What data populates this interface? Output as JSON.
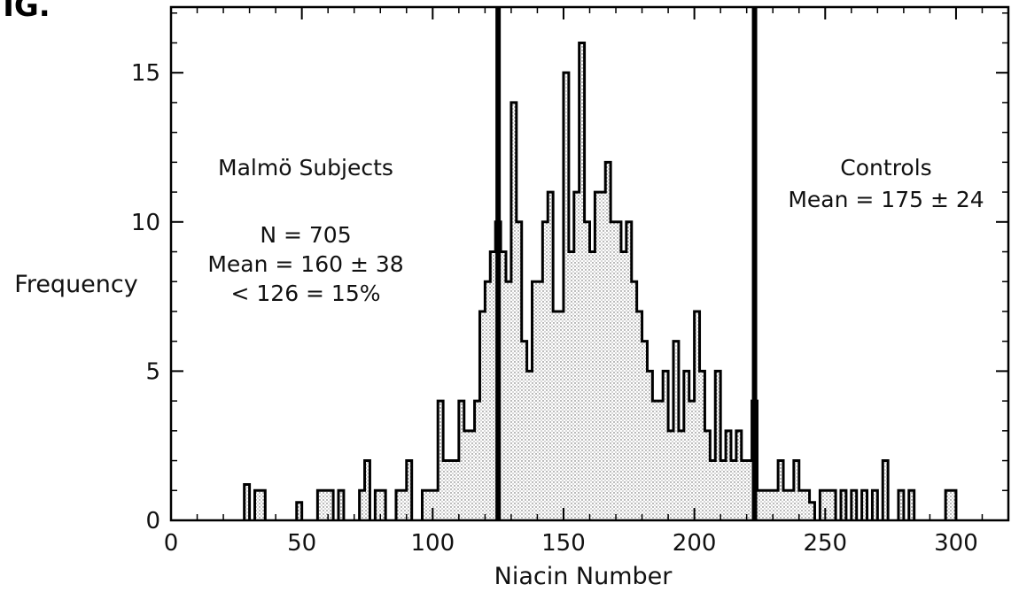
{
  "figure_label": "FIG.",
  "chart_data": {
    "type": "histogram",
    "xlabel": "Niacin Number",
    "ylabel": "Frequency",
    "xlim": [
      0,
      320
    ],
    "ylim": [
      0,
      17.2
    ],
    "x_ticks": [
      0,
      50,
      100,
      150,
      200,
      250,
      300
    ],
    "y_ticks": [
      0,
      5,
      10,
      15
    ],
    "grid": false,
    "bin_width": 2,
    "series": [
      {
        "bins": [
          [
            28,
            1.2
          ],
          [
            32,
            1
          ],
          [
            34,
            1
          ],
          [
            48,
            0.6
          ],
          [
            56,
            1
          ],
          [
            58,
            1
          ],
          [
            60,
            1
          ],
          [
            64,
            1
          ],
          [
            72,
            1
          ],
          [
            74,
            2
          ],
          [
            78,
            1
          ],
          [
            80,
            1
          ],
          [
            86,
            1
          ],
          [
            88,
            1
          ],
          [
            90,
            2
          ],
          [
            96,
            1
          ],
          [
            98,
            1
          ],
          [
            100,
            1
          ],
          [
            102,
            4
          ],
          [
            104,
            2
          ],
          [
            106,
            2
          ],
          [
            108,
            2
          ],
          [
            110,
            4
          ],
          [
            112,
            3
          ],
          [
            114,
            3
          ],
          [
            116,
            4
          ],
          [
            118,
            7
          ],
          [
            120,
            8
          ],
          [
            122,
            9
          ],
          [
            124,
            10
          ],
          [
            126,
            9
          ],
          [
            128,
            8
          ],
          [
            130,
            14
          ],
          [
            132,
            10
          ],
          [
            134,
            6
          ],
          [
            136,
            5
          ],
          [
            138,
            8
          ],
          [
            140,
            8
          ],
          [
            142,
            10
          ],
          [
            144,
            11
          ],
          [
            146,
            7
          ],
          [
            148,
            7
          ],
          [
            150,
            15
          ],
          [
            152,
            9
          ],
          [
            154,
            11
          ],
          [
            156,
            16
          ],
          [
            158,
            10
          ],
          [
            160,
            9
          ],
          [
            162,
            11
          ],
          [
            164,
            11
          ],
          [
            166,
            12
          ],
          [
            168,
            10
          ],
          [
            170,
            10
          ],
          [
            172,
            9
          ],
          [
            174,
            10
          ],
          [
            176,
            8
          ],
          [
            178,
            7
          ],
          [
            180,
            6
          ],
          [
            182,
            5
          ],
          [
            184,
            4
          ],
          [
            186,
            4
          ],
          [
            188,
            5
          ],
          [
            190,
            3
          ],
          [
            192,
            6
          ],
          [
            194,
            3
          ],
          [
            196,
            5
          ],
          [
            198,
            4
          ],
          [
            200,
            7
          ],
          [
            202,
            5
          ],
          [
            204,
            3
          ],
          [
            206,
            2
          ],
          [
            208,
            5
          ],
          [
            210,
            2
          ],
          [
            212,
            3
          ],
          [
            214,
            2
          ],
          [
            216,
            3
          ],
          [
            218,
            2
          ],
          [
            220,
            2
          ],
          [
            222,
            4
          ],
          [
            224,
            1
          ],
          [
            226,
            1
          ],
          [
            228,
            1
          ],
          [
            230,
            1
          ],
          [
            232,
            2
          ],
          [
            234,
            1
          ],
          [
            236,
            1
          ],
          [
            238,
            2
          ],
          [
            240,
            1
          ],
          [
            242,
            1
          ],
          [
            244,
            0.6
          ],
          [
            248,
            1
          ],
          [
            250,
            1
          ],
          [
            252,
            1
          ],
          [
            256,
            1
          ],
          [
            260,
            1
          ],
          [
            264,
            1
          ],
          [
            268,
            1
          ],
          [
            272,
            2
          ],
          [
            278,
            1
          ],
          [
            282,
            1
          ],
          [
            296,
            1
          ],
          [
            298,
            1
          ]
        ]
      }
    ],
    "vertical_lines": [
      {
        "x": 125,
        "label": ""
      },
      {
        "x": 223,
        "label": ""
      }
    ],
    "annotations": {
      "malmo": {
        "title": "Malmö Subjects",
        "n": "N = 705",
        "mean": "Mean = 160 ± 38",
        "threshold": "< 126 = 15%"
      },
      "controls": {
        "title": "Controls",
        "mean": "Mean = 175 ± 24"
      }
    },
    "colors": {
      "fill": "#c8c8c8",
      "line": "#000000"
    }
  }
}
